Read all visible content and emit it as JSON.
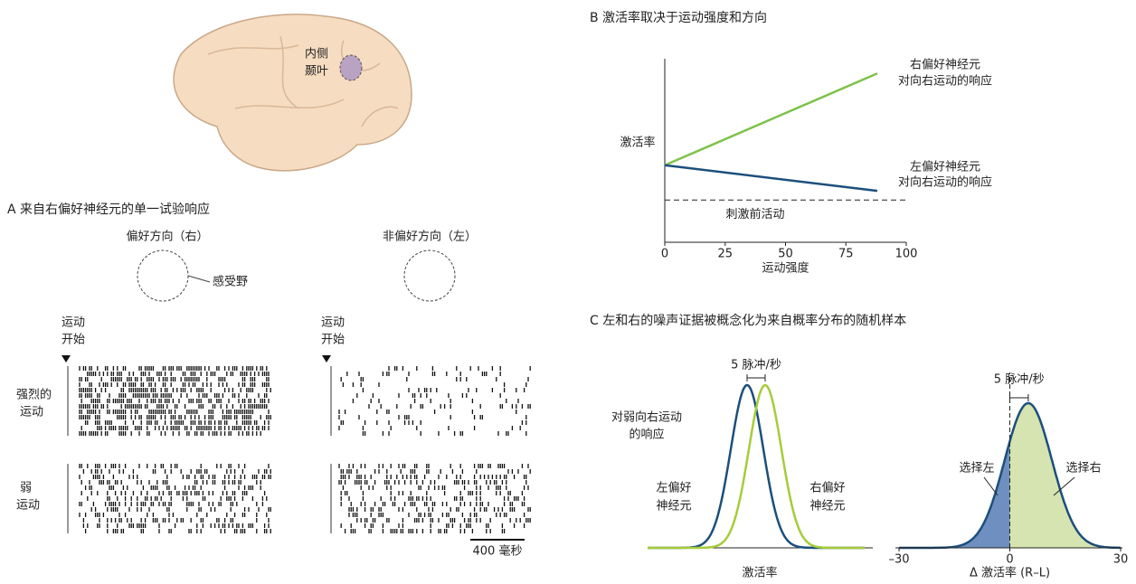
{
  "brain": {
    "label": [
      "内侧",
      "颞叶"
    ]
  },
  "panel_a": {
    "title": "A 来自右偏好神经元的单一试验响应",
    "conditions": [
      "偏好方向（右）",
      "非偏好方向（左）"
    ],
    "receptive_field": "感受野",
    "onset": [
      "运动",
      "开始"
    ],
    "rows": [
      [
        "强烈的",
        "运动"
      ],
      [
        "弱",
        "运动"
      ]
    ],
    "scale_bar": "400 毫秒"
  },
  "chart_data": [
    {
      "type": "line",
      "title": "B 激活率取决于运动强度和方向",
      "xlabel": "运动强度",
      "ylabel": "激活率",
      "xlim": [
        0,
        100
      ],
      "xticks": [
        0,
        25,
        50,
        75,
        100
      ],
      "ylim": [
        0,
        100
      ],
      "x": [
        0,
        88
      ],
      "series": [
        {
          "label": [
            "右偏好神经元",
            "对向右运动的响应"
          ],
          "color": "#7dc24b",
          "values": [
            42,
            92
          ]
        },
        {
          "label": [
            "左偏好神经元",
            "对向右运动的响应"
          ],
          "color": "#1c4f7c",
          "values": [
            42,
            28
          ]
        }
      ],
      "annotations": [
        {
          "text": "刺激前活动",
          "value": 23
        }
      ]
    },
    {
      "type": "density",
      "title": "C 左和右的噪声证据被概念化为来自概率分布的随机样本",
      "xlabel": "激活率",
      "xlim": [
        -30,
        30
      ],
      "series": [
        {
          "label": [
            "左偏好",
            "神经元"
          ],
          "color": "#1c4f7c",
          "mean": -2.5,
          "sd": 4.5
        },
        {
          "label": [
            "右偏好",
            "神经元"
          ],
          "color": "#a6cc3a",
          "mean": 2.5,
          "sd": 4.5
        }
      ],
      "annotations": [
        [
          "对弱向右运动",
          "的响应"
        ]
      ],
      "difference_label": "5 脉冲/秒"
    },
    {
      "type": "difference",
      "xlabel": "Δ 激活率 (R–L)",
      "xlim": [
        -30,
        30
      ],
      "xticks": [
        {
          "value": -30,
          "label": "–30"
        },
        0,
        30
      ],
      "mean": 5,
      "sd": 6.4,
      "colors": {
        "left": "#6e8fc0",
        "right": "#d5e4b0",
        "line": "#1c4f7c"
      },
      "choices": [
        "选择左",
        "选择右"
      ],
      "difference_label": "5 脉冲/秒"
    }
  ]
}
